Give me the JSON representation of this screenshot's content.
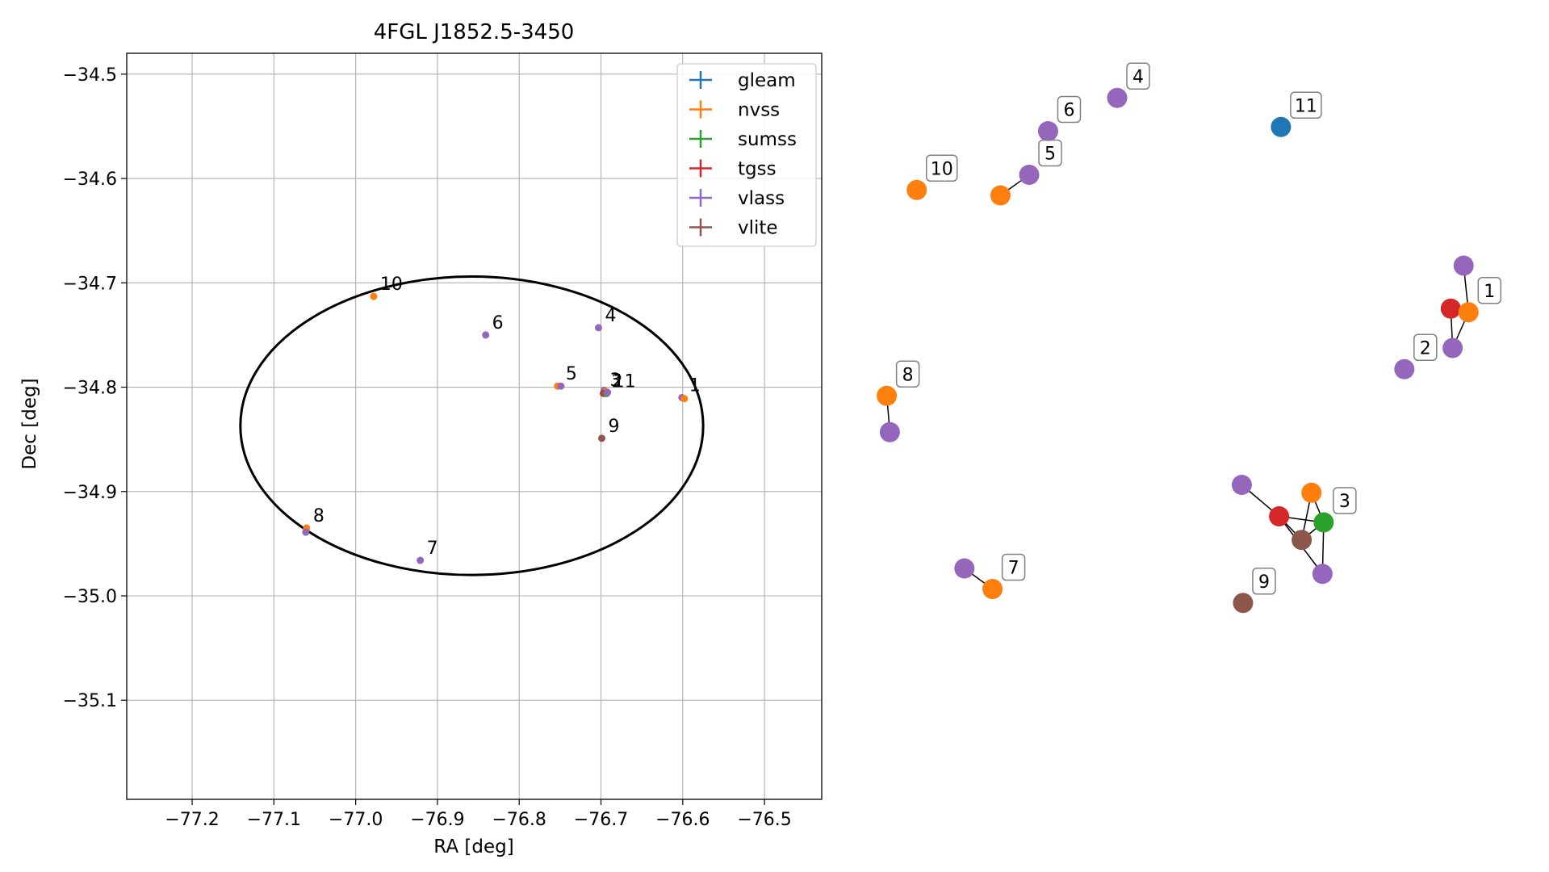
{
  "chart_data": [
    {
      "type": "scatter",
      "title": "4FGL J1852.5-3450",
      "xlabel": "RA [deg]",
      "ylabel": "Dec [deg]",
      "xlim": [
        -77.28,
        -76.43
      ],
      "ylim": [
        -35.195,
        -34.48
      ],
      "x_axis_inverted": false,
      "xticks": [
        -77.2,
        -77.1,
        -77.0,
        -76.9,
        -76.8,
        -76.7,
        -76.6,
        -76.5
      ],
      "xtick_labels": [
        "−77.2",
        "−77.1",
        "−77.0",
        "−76.9",
        "−76.8",
        "−76.7",
        "−76.6",
        "−76.5"
      ],
      "yticks": [
        -34.5,
        -34.6,
        -34.7,
        -34.8,
        -34.9,
        -35.0,
        -35.1
      ],
      "ytick_labels": [
        "−34.5",
        "−34.6",
        "−34.7",
        "−34.8",
        "−34.9",
        "−35.0",
        "−35.1"
      ],
      "grid": true,
      "legend_placement": "upper-right",
      "legend": [
        {
          "name": "gleam",
          "color": "#1f77b4"
        },
        {
          "name": "nvss",
          "color": "#ff7f0e"
        },
        {
          "name": "sumss",
          "color": "#2ca02c"
        },
        {
          "name": "tgss",
          "color": "#d62728"
        },
        {
          "name": "vlass",
          "color": "#9467bd"
        },
        {
          "name": "vlite",
          "color": "#8c564b"
        }
      ],
      "ellipse": {
        "center": [
          -76.858,
          -34.837
        ],
        "semi_axes": [
          0.283,
          0.143
        ],
        "color": "#000000"
      },
      "points": [
        {
          "survey": "nvss",
          "x": -76.978,
          "y": -34.713
        },
        {
          "survey": "vlass",
          "x": -76.841,
          "y": -34.75
        },
        {
          "survey": "vlass",
          "x": -76.703,
          "y": -34.743
        },
        {
          "survey": "nvss",
          "x": -76.753,
          "y": -34.799
        },
        {
          "survey": "vlass",
          "x": -76.749,
          "y": -34.799
        },
        {
          "survey": "vlass",
          "x": -76.696,
          "y": -34.803
        },
        {
          "survey": "nvss",
          "x": -76.694,
          "y": -34.804
        },
        {
          "survey": "tgss",
          "x": -76.697,
          "y": -34.806
        },
        {
          "survey": "vlite",
          "x": -76.695,
          "y": -34.806
        },
        {
          "survey": "sumss",
          "x": -76.693,
          "y": -34.806
        },
        {
          "survey": "vlass",
          "x": -76.692,
          "y": -34.805
        },
        {
          "survey": "vlass",
          "x": -76.601,
          "y": -34.81
        },
        {
          "survey": "nvss",
          "x": -76.598,
          "y": -34.811
        },
        {
          "survey": "vlite",
          "x": -76.699,
          "y": -34.849
        },
        {
          "survey": "nvss",
          "x": -77.06,
          "y": -34.935
        },
        {
          "survey": "vlass",
          "x": -77.061,
          "y": -34.939
        },
        {
          "survey": "vlass",
          "x": -76.921,
          "y": -34.966
        }
      ],
      "labels": [
        {
          "text": "10",
          "x": -76.978,
          "y": -34.713
        },
        {
          "text": "6",
          "x": -76.841,
          "y": -34.75
        },
        {
          "text": "4",
          "x": -76.703,
          "y": -34.743
        },
        {
          "text": "5",
          "x": -76.751,
          "y": -34.799
        },
        {
          "text": "3",
          "x": -76.697,
          "y": -34.805
        },
        {
          "text": "2",
          "x": -76.695,
          "y": -34.806
        },
        {
          "text": "11",
          "x": -76.693,
          "y": -34.806
        },
        {
          "text": "1",
          "x": -76.6,
          "y": -34.81
        },
        {
          "text": "9",
          "x": -76.699,
          "y": -34.849
        },
        {
          "text": "8",
          "x": -77.06,
          "y": -34.935
        },
        {
          "text": "7",
          "x": -76.921,
          "y": -34.966
        }
      ]
    },
    {
      "type": "network",
      "nodes": [
        {
          "id": "n4",
          "survey": "vlass",
          "label": "4",
          "x": 0.395,
          "y": 0.965
        },
        {
          "id": "n11",
          "survey": "gleam",
          "label": "11",
          "x": 0.663,
          "y": 0.917
        },
        {
          "id": "n6",
          "survey": "vlass",
          "label": "6",
          "x": 0.282,
          "y": 0.91
        },
        {
          "id": "n10",
          "survey": "nvss",
          "label": "10",
          "x": 0.067,
          "y": 0.813
        },
        {
          "id": "n5a",
          "survey": "vlass",
          "label": "5",
          "x": 0.251,
          "y": 0.838
        },
        {
          "id": "n5b",
          "survey": "nvss",
          "label": "",
          "x": 0.204,
          "y": 0.804
        },
        {
          "id": "n1a",
          "survey": "vlass",
          "label": "",
          "x": 0.962,
          "y": 0.688
        },
        {
          "id": "n1b",
          "survey": "tgss",
          "label": "",
          "x": 0.941,
          "y": 0.617
        },
        {
          "id": "n1c",
          "survey": "nvss",
          "label": "1",
          "x": 0.97,
          "y": 0.611
        },
        {
          "id": "n1d",
          "survey": "vlass",
          "label": "",
          "x": 0.944,
          "y": 0.552
        },
        {
          "id": "n2",
          "survey": "vlass",
          "label": "2",
          "x": 0.865,
          "y": 0.517
        },
        {
          "id": "n8a",
          "survey": "nvss",
          "label": "8",
          "x": 0.018,
          "y": 0.473
        },
        {
          "id": "n8b",
          "survey": "vlass",
          "label": "",
          "x": 0.023,
          "y": 0.413
        },
        {
          "id": "n3a",
          "survey": "vlass",
          "label": "",
          "x": 0.599,
          "y": 0.326
        },
        {
          "id": "n3b",
          "survey": "nvss",
          "label": "",
          "x": 0.713,
          "y": 0.313
        },
        {
          "id": "n3c",
          "survey": "tgss",
          "label": "",
          "x": 0.66,
          "y": 0.274
        },
        {
          "id": "n3d",
          "survey": "sumss",
          "label": "3",
          "x": 0.733,
          "y": 0.264
        },
        {
          "id": "n3e",
          "survey": "vlite",
          "label": "",
          "x": 0.697,
          "y": 0.235
        },
        {
          "id": "n3f",
          "survey": "vlass",
          "label": "",
          "x": 0.731,
          "y": 0.179
        },
        {
          "id": "n7a",
          "survey": "vlass",
          "label": "",
          "x": 0.145,
          "y": 0.188
        },
        {
          "id": "n7b",
          "survey": "nvss",
          "label": "7",
          "x": 0.191,
          "y": 0.154
        },
        {
          "id": "n9",
          "survey": "vlite",
          "label": "9",
          "x": 0.601,
          "y": 0.131
        }
      ],
      "edges": [
        [
          "n5a",
          "n5b"
        ],
        [
          "n1a",
          "n1c"
        ],
        [
          "n1b",
          "n1d"
        ],
        [
          "n1c",
          "n1d"
        ],
        [
          "n8a",
          "n8b"
        ],
        [
          "n3a",
          "n3c"
        ],
        [
          "n3b",
          "n3d"
        ],
        [
          "n3b",
          "n3e"
        ],
        [
          "n3c",
          "n3d"
        ],
        [
          "n3c",
          "n3e"
        ],
        [
          "n3d",
          "n3e"
        ],
        [
          "n3c",
          "n3f"
        ],
        [
          "n3d",
          "n3f"
        ],
        [
          "n7a",
          "n7b"
        ]
      ]
    }
  ]
}
